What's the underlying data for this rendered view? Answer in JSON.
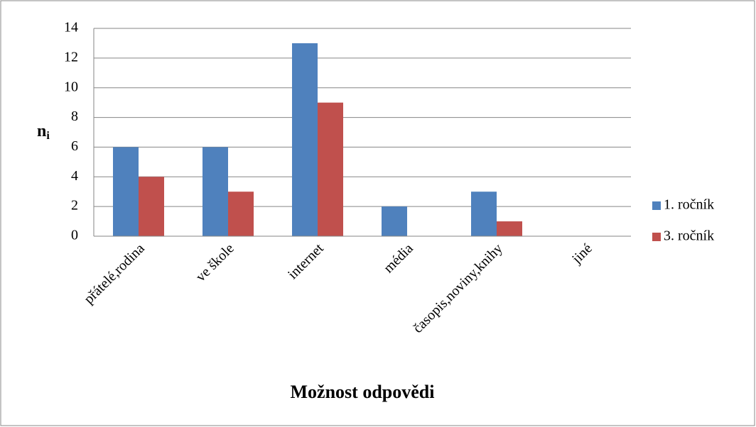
{
  "chart_data": {
    "type": "bar",
    "xlabel": "Možnost odpovědi",
    "ylabel": {
      "base": "n",
      "subscript": "i"
    },
    "categories": [
      "přátelé,rodina",
      "ve škole",
      "internet",
      "média",
      "časopis,noviny,knihy",
      "jiné"
    ],
    "series": [
      {
        "name": "1. ročník",
        "color": "#4f81bd",
        "values": [
          6,
          6,
          13,
          2,
          3,
          0
        ]
      },
      {
        "name": "3. ročník",
        "color": "#c0504d",
        "values": [
          4,
          3,
          9,
          0,
          1,
          0
        ]
      }
    ],
    "ylim": [
      0,
      14
    ],
    "yticks": [
      0,
      2,
      4,
      6,
      8,
      10,
      12,
      14
    ],
    "grid": true,
    "legend": "right"
  }
}
